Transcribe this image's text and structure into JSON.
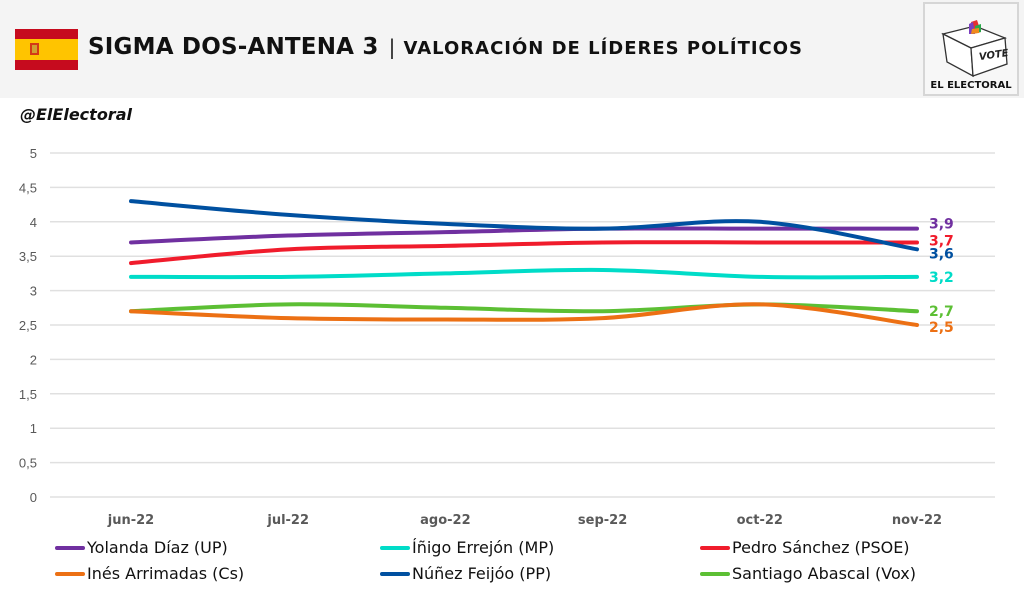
{
  "header": {
    "title_main": "SIGMA DOS-ANTENA 3",
    "title_separator": "|",
    "title_sub": "VALORACIÓN DE LÍDERES POLÍTICOS",
    "flag_icon": "spain-flag-icon",
    "logo": {
      "box_text": "VOTE",
      "caption": "EL ELECTORAL"
    }
  },
  "handle": "@ElElectoral",
  "colors": {
    "header_bg": "#f4f4f4",
    "grid": "#e0e0e0",
    "axis_text": "#595959"
  },
  "chart_data": {
    "type": "line",
    "title": "SIGMA DOS-ANTENA 3 | VALORACIÓN DE LÍDERES POLÍTICOS",
    "xlabel": "",
    "ylabel": "",
    "categories": [
      "jun-22",
      "jul-22",
      "ago-22",
      "sep-22",
      "oct-22",
      "nov-22"
    ],
    "ylim": [
      0,
      5
    ],
    "yticks": [
      "0",
      "0,5",
      "1",
      "1,5",
      "2",
      "2,5",
      "3",
      "3,5",
      "4",
      "4,5",
      "5"
    ],
    "ytick_values": [
      0,
      0.5,
      1,
      1.5,
      2,
      2.5,
      3,
      3.5,
      4,
      4.5,
      5
    ],
    "grid": true,
    "smooth": true,
    "legend_position": "bottom",
    "series": [
      {
        "name": "Yolanda Díaz (UP)",
        "color": "#7030a0",
        "values": [
          3.7,
          3.8,
          3.85,
          3.9,
          3.9,
          3.9
        ],
        "end_label": "3,9"
      },
      {
        "name": "Íñigo Errejón (MP)",
        "color": "#00dcc8",
        "values": [
          3.2,
          3.2,
          3.25,
          3.3,
          3.2,
          3.2
        ],
        "end_label": "3,2"
      },
      {
        "name": "Pedro Sánchez (PSOE)",
        "color": "#f01c2c",
        "values": [
          3.4,
          3.6,
          3.65,
          3.7,
          3.7,
          3.7
        ],
        "end_label": "3,7"
      },
      {
        "name": "Inés Arrimadas (Cs)",
        "color": "#ec7014",
        "values": [
          2.7,
          2.6,
          2.58,
          2.6,
          2.8,
          2.5
        ],
        "end_label": "2,5"
      },
      {
        "name": "Núñez Feijóo (PP)",
        "color": "#0050a0",
        "values": [
          4.3,
          4.1,
          3.97,
          3.9,
          4.0,
          3.6
        ],
        "end_label": "3,6"
      },
      {
        "name": "Santiago Abascal (Vox)",
        "color": "#5cbf34",
        "values": [
          2.7,
          2.8,
          2.75,
          2.7,
          2.8,
          2.7
        ],
        "end_label": "2,7"
      }
    ]
  }
}
